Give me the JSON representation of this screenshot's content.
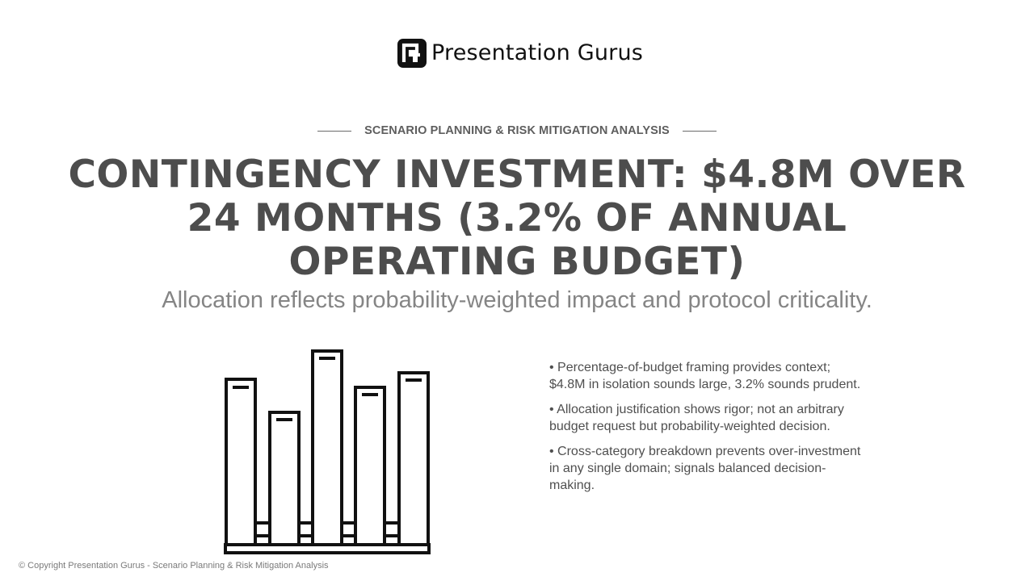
{
  "logo": {
    "text": "Presentation Gurus",
    "icon": "presentation-gurus-logo-mark"
  },
  "header": {
    "eyebrow": "SCENARIO PLANNING & RISK MITIGATION ANALYSIS",
    "title": "CONTINGENCY INVESTMENT: $4.8M OVER 24 MONTHS (3.2% OF ANNUAL OPERATING BUDGET)",
    "subtitle": "Allocation reflects probability-weighted impact and protocol criticality."
  },
  "illustration": {
    "icon": "bar-chart-icon"
  },
  "bullets": [
    "• Percentage-of-budget framing provides context; $4.8M in isolation sounds large, 3.2% sounds prudent.",
    "• Allocation justification shows rigor; not an arbitrary budget request but probability-weighted decision.",
    "• Cross-category breakdown prevents over-investment in any single domain; signals balanced decision-making."
  ],
  "footer": {
    "copyright": "© Copyright Presentation Gurus - Scenario Planning & Risk Mitigation Analysis"
  },
  "colors": {
    "title": "#4d4d4d",
    "subtitle": "#858585",
    "body": "#4f4f4f",
    "logo": "#111111"
  }
}
